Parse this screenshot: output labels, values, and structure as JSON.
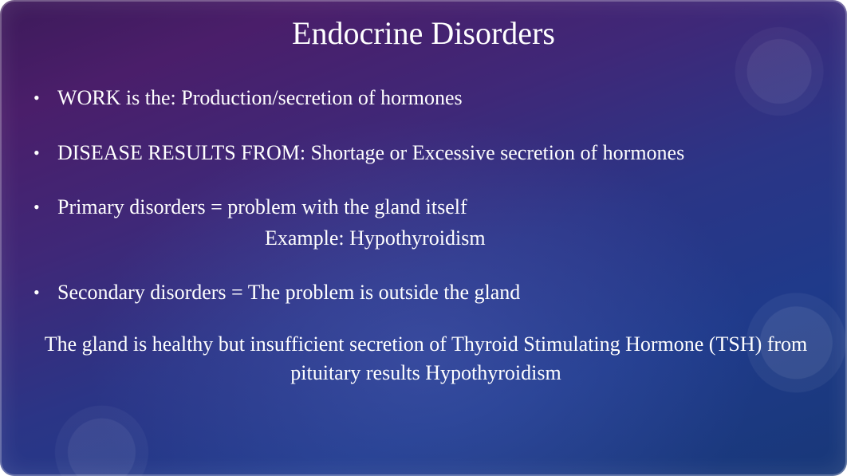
{
  "slide": {
    "title": "Endocrine Disorders",
    "bullets": [
      {
        "text": "WORK is the:  Production/secretion of hormones"
      },
      {
        "text": "DISEASE RESULTS FROM: Shortage or Excessive secretion of hormones"
      },
      {
        "text": "Primary disorders = problem with the gland itself",
        "example": "Example:  Hypothyroidism"
      },
      {
        "text": "Secondary disorders = The problem is outside the gland"
      }
    ],
    "footer": "The gland is healthy but insufficient secretion of Thyroid Stimulating Hormone (TSH)  from pituitary results Hypothyroidism"
  },
  "style": {
    "background_gradient_start": "#3d1a5a",
    "background_gradient_mid": "#3f2878",
    "background_gradient_end": "#183878",
    "text_color": "#ffffff",
    "title_fontsize": 40,
    "body_fontsize": 26,
    "border_radius": 18,
    "font_family": "Georgia, Times New Roman, serif"
  }
}
